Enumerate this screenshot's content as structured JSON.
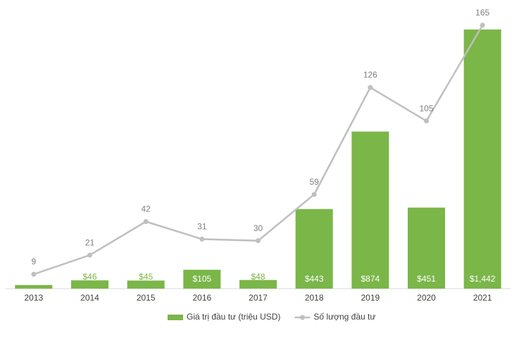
{
  "chart_data": {
    "type": "bar",
    "categories": [
      "2013",
      "2014",
      "2015",
      "2016",
      "2017",
      "2018",
      "2019",
      "2020",
      "2021"
    ],
    "series": [
      {
        "name": "Giá trị đầu tư (triệu USD)",
        "type": "bar",
        "color": "#7ab648",
        "values": [
          20,
          46,
          45,
          105,
          48,
          443,
          874,
          451,
          1442
        ],
        "value_labels": [
          null,
          "$46",
          "$45",
          "$105",
          "$48",
          "$443",
          "$874",
          "$451",
          "$1,442"
        ]
      },
      {
        "name": "Số lượng đầu tư",
        "type": "line",
        "axis": "y2",
        "color": "#bfbfbf",
        "values": [
          9,
          21,
          42,
          31,
          30,
          59,
          126,
          105,
          165
        ]
      }
    ],
    "ylim": [
      0,
      1489
    ],
    "y2lim": [
      0,
      167.6
    ],
    "legend": "bottom"
  }
}
